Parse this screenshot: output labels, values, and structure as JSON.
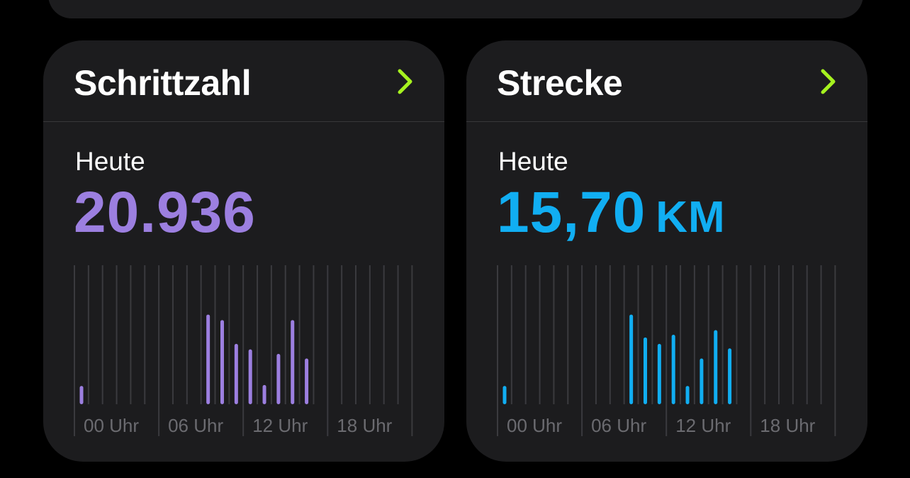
{
  "colors": {
    "background": "#000000",
    "card": "#1c1c1e",
    "divider": "#38383a",
    "accent_chevron": "#a6f21f",
    "steps": "#9c7fe0",
    "distance": "#11aef2",
    "grid": "#3a3a3e",
    "tick_text": "#6b6b70"
  },
  "cards": [
    {
      "title": "Schrittzahl",
      "chevron_icon": "chevron-right-icon",
      "period_label": "Heute",
      "value": "20.936",
      "unit": "",
      "color": "#9c7fe0"
    },
    {
      "title": "Strecke",
      "chevron_icon": "chevron-right-icon",
      "period_label": "Heute",
      "value": "15,70",
      "unit": "KM",
      "color": "#11aef2"
    }
  ],
  "chart_data": [
    {
      "type": "bar",
      "x_tick_labels": [
        "00 Uhr",
        "06 Uhr",
        "12 Uhr",
        "18 Uhr"
      ],
      "categories": [
        0,
        1,
        2,
        3,
        4,
        5,
        6,
        7,
        8,
        9,
        10,
        11,
        12,
        13,
        14,
        15,
        16,
        17,
        18,
        19,
        20,
        21,
        22,
        23
      ],
      "values": [
        0.2,
        0,
        0,
        0,
        0,
        0,
        0,
        0,
        0,
        0.98,
        0.92,
        0.66,
        0.6,
        0.21,
        0.55,
        0.92,
        0.5,
        0,
        0,
        0,
        0,
        0,
        0,
        0
      ],
      "y_scale": "relative",
      "grid": true
    },
    {
      "type": "bar",
      "x_tick_labels": [
        "00 Uhr",
        "06 Uhr",
        "12 Uhr",
        "18 Uhr"
      ],
      "categories": [
        0,
        1,
        2,
        3,
        4,
        5,
        6,
        7,
        8,
        9,
        10,
        11,
        12,
        13,
        14,
        15,
        16,
        17,
        18,
        19,
        20,
        21,
        22,
        23
      ],
      "values": [
        0.2,
        0,
        0,
        0,
        0,
        0,
        0,
        0,
        0,
        0.98,
        0.73,
        0.66,
        0.76,
        0.2,
        0.5,
        0.81,
        0.61,
        0,
        0,
        0,
        0,
        0,
        0,
        0
      ],
      "y_scale": "relative",
      "grid": true
    }
  ]
}
